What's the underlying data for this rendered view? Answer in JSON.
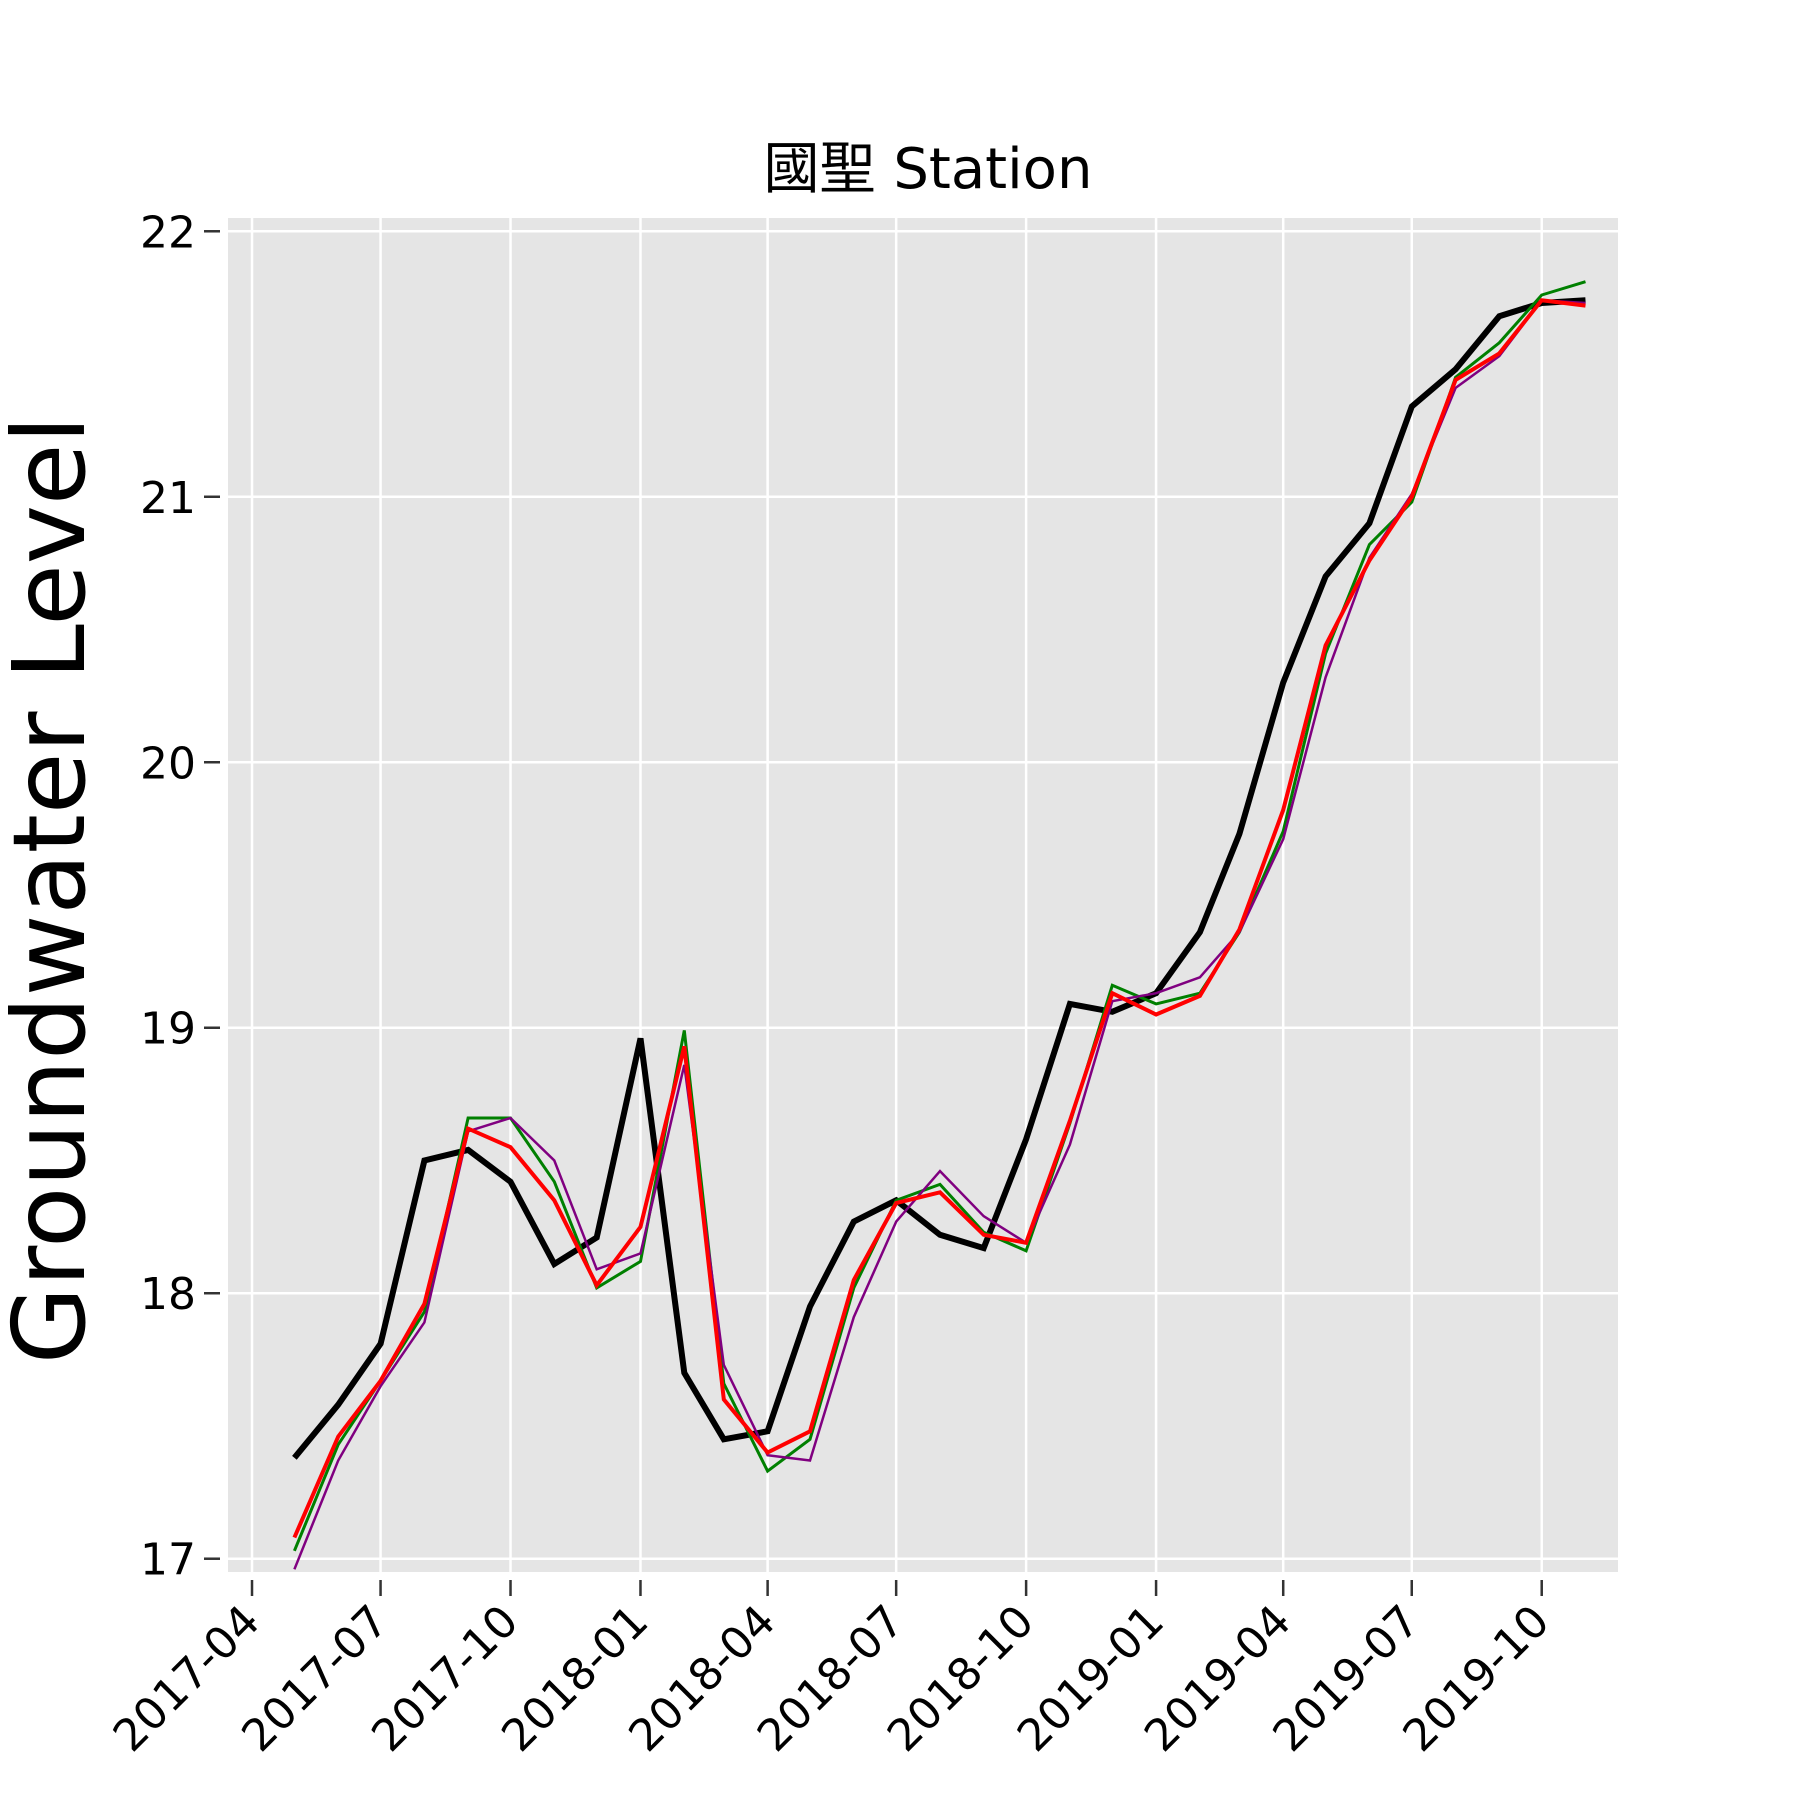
{
  "chart_data": {
    "type": "line",
    "title": "國聖 Station",
    "xlabel": "",
    "ylabel": "Groundwater Level",
    "ylim": [
      16.95,
      22.05
    ],
    "xlim": [
      "2017-03-15",
      "2019-11-24"
    ],
    "grid": true,
    "background": "#e5e5e5",
    "y_ticks": [
      17,
      18,
      19,
      20,
      21,
      22
    ],
    "y_tick_labels": [
      "17",
      "18",
      "19",
      "20",
      "21",
      "22"
    ],
    "x_ticks": [
      "2017-04-01",
      "2017-07-01",
      "2017-10-01",
      "2018-01-01",
      "2018-04-01",
      "2018-07-01",
      "2018-10-01",
      "2019-01-01",
      "2019-04-01",
      "2019-07-01",
      "2019-10-01"
    ],
    "x_tick_labels": [
      "2017-04",
      "2017-07",
      "2017-10",
      "2018-01",
      "2018-04",
      "2018-07",
      "2018-10",
      "2019-01",
      "2019-04",
      "2019-07",
      "2019-10"
    ],
    "x": [
      "2017-05-01",
      "2017-06-01",
      "2017-07-01",
      "2017-08-01",
      "2017-09-01",
      "2017-10-01",
      "2017-11-01",
      "2017-12-01",
      "2018-01-01",
      "2018-02-01",
      "2018-03-01",
      "2018-04-01",
      "2018-05-01",
      "2018-06-01",
      "2018-07-01",
      "2018-08-01",
      "2018-09-01",
      "2018-10-01",
      "2018-11-01",
      "2018-12-01",
      "2019-01-01",
      "2019-02-01",
      "2019-03-01",
      "2019-04-01",
      "2019-05-01",
      "2019-06-01",
      "2019-07-01",
      "2019-08-01",
      "2019-09-01",
      "2019-10-01",
      "2019-11-01"
    ],
    "series": [
      {
        "color": "#000000",
        "width": 6,
        "values": [
          17.38,
          17.58,
          17.81,
          18.5,
          18.54,
          18.42,
          18.11,
          18.21,
          18.96,
          17.7,
          17.45,
          17.48,
          17.95,
          18.27,
          18.35,
          18.22,
          18.17,
          18.58,
          19.09,
          19.06,
          19.13,
          19.36,
          19.73,
          20.3,
          20.7,
          20.9,
          21.34,
          21.48,
          21.68,
          21.73,
          21.74
        ]
      },
      {
        "color": "#008000",
        "width": 3,
        "values": [
          17.03,
          17.43,
          17.67,
          17.93,
          18.66,
          18.66,
          18.42,
          18.02,
          18.12,
          18.99,
          17.66,
          17.33,
          17.45,
          18.02,
          18.35,
          18.41,
          18.23,
          18.16,
          18.64,
          19.16,
          19.09,
          19.13,
          19.36,
          19.74,
          20.41,
          20.82,
          20.98,
          21.45,
          21.58,
          21.76,
          21.81
        ]
      },
      {
        "color": "#800080",
        "width": 2.5,
        "values": [
          16.96,
          17.37,
          17.65,
          17.89,
          18.61,
          18.66,
          18.5,
          18.09,
          18.15,
          18.86,
          17.73,
          17.39,
          17.37,
          17.91,
          18.27,
          18.46,
          18.29,
          18.19,
          18.56,
          19.1,
          19.13,
          19.19,
          19.36,
          19.71,
          20.32,
          20.77,
          21.01,
          21.41,
          21.53,
          21.74,
          21.73
        ]
      },
      {
        "color": "#ff0000",
        "width": 4,
        "values": [
          17.08,
          17.46,
          17.67,
          17.96,
          18.62,
          18.55,
          18.35,
          18.03,
          18.25,
          18.93,
          17.6,
          17.4,
          17.48,
          18.05,
          18.34,
          18.38,
          18.22,
          18.19,
          18.65,
          19.13,
          19.05,
          19.12,
          19.37,
          19.82,
          20.44,
          20.76,
          21.0,
          21.44,
          21.54,
          21.74,
          21.72
        ]
      }
    ]
  }
}
